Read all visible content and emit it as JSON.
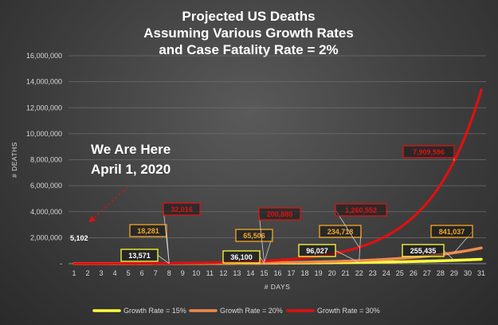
{
  "chart_data": {
    "type": "line",
    "title": [
      "Projected US Deaths",
      "Assuming Various Growth Rates",
      "and Case Fatality Rate = 2%"
    ],
    "xlabel": "# DAYS",
    "ylabel": "# DEATHS",
    "ylim": [
      0,
      16000000
    ],
    "yticks": [
      "-",
      "2,000,000",
      "4,000,000",
      "6,000,000",
      "8,000,000",
      "10,000,000",
      "12,000,000",
      "14,000,000",
      "16,000,000"
    ],
    "x": [
      1,
      2,
      3,
      4,
      5,
      6,
      7,
      8,
      9,
      10,
      11,
      12,
      13,
      14,
      15,
      16,
      17,
      18,
      19,
      20,
      21,
      22,
      23,
      24,
      25,
      26,
      27,
      28,
      29,
      30,
      31
    ],
    "series": [
      {
        "name": "Growth Rate = 15%",
        "color": "#ffff3c",
        "base": 5102,
        "rate": 0.15
      },
      {
        "name": "Growth Rate = 20%",
        "color": "#f08a4b",
        "base": 5102,
        "rate": 0.2
      },
      {
        "name": "Growth Rate = 30%",
        "color": "#e01010",
        "base": 5102,
        "rate": 0.3
      }
    ],
    "start_label": "5,102",
    "callouts": [
      {
        "series": 0,
        "day": 8,
        "text": "13,571",
        "color": "#ffff3c",
        "fill": "#ffffff"
      },
      {
        "series": 1,
        "day": 8,
        "text": "18,281",
        "color": "#f5a623",
        "fill": "#f5a623"
      },
      {
        "series": 2,
        "day": 8,
        "text": "32,016",
        "color": "#e01010",
        "fill": "#e01010"
      },
      {
        "series": 0,
        "day": 15,
        "text": "36,100",
        "color": "#ffff3c",
        "fill": "#ffffff"
      },
      {
        "series": 1,
        "day": 15,
        "text": "65,506",
        "color": "#f5a623",
        "fill": "#f5a623"
      },
      {
        "series": 2,
        "day": 15,
        "text": "200,880",
        "color": "#e01010",
        "fill": "#e01010"
      },
      {
        "series": 0,
        "day": 22,
        "text": "96,027",
        "color": "#ffff3c",
        "fill": "#ffffff"
      },
      {
        "series": 1,
        "day": 22,
        "text": "234,718",
        "color": "#f5a623",
        "fill": "#f5a623"
      },
      {
        "series": 2,
        "day": 22,
        "text": "1,260,552",
        "color": "#e01010",
        "fill": "#e01010"
      },
      {
        "series": 0,
        "day": 29,
        "text": "255,435",
        "color": "#ffff3c",
        "fill": "#ffffff"
      },
      {
        "series": 1,
        "day": 29,
        "text": "841,037",
        "color": "#f5a623",
        "fill": "#f5a623"
      },
      {
        "series": 2,
        "day": 29,
        "text": "7,909,596",
        "color": "#e01010",
        "fill": "#e01010"
      }
    ],
    "annotation": [
      "We Are Here",
      "April 1, 2020"
    ],
    "grid": true,
    "legend_position": "bottom"
  }
}
